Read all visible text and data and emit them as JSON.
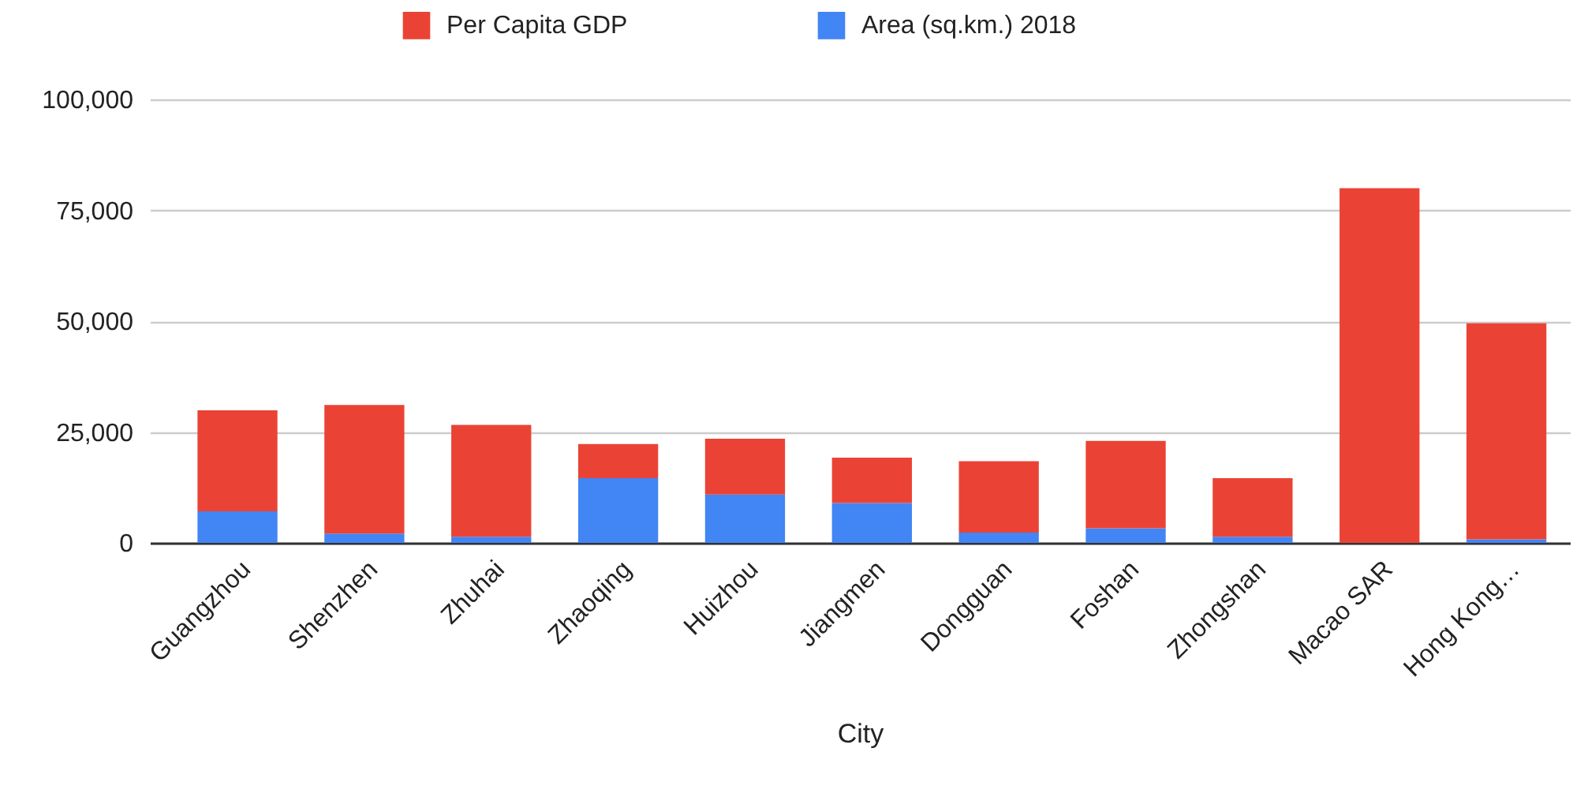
{
  "chart_data": {
    "type": "bar",
    "stacked": true,
    "xlabel": "City",
    "categories": [
      "Guangzhou",
      "Shenzhen",
      "Zhuhai",
      "Zhaoqing",
      "Huizhou",
      "Jiangmen",
      "Dongguan",
      "Foshan",
      "Zhongshan",
      "Macao SAR",
      "Hong Kong…"
    ],
    "series": [
      {
        "name": "Area (sq.km.) 2018",
        "color": "#4285f4",
        "values": [
          7100,
          2100,
          1400,
          14600,
          10900,
          9000,
          2300,
          3300,
          1400,
          null,
          800
        ]
      },
      {
        "name": "Per Capita GDP",
        "color": "#ea4335",
        "values": [
          22800,
          29000,
          25200,
          7700,
          12600,
          10200,
          16100,
          19700,
          13200,
          80000,
          48700
        ]
      }
    ],
    "ylim": [
      0,
      100000
    ],
    "yticks": [
      0,
      {
        "value": 25000,
        "label": "25,000"
      },
      {
        "value": 50000,
        "label": "50,000"
      },
      {
        "value": 75000,
        "label": "75,000"
      },
      {
        "value": 100000,
        "label": "100,000"
      }
    ],
    "grid": "y",
    "legend": "top"
  }
}
